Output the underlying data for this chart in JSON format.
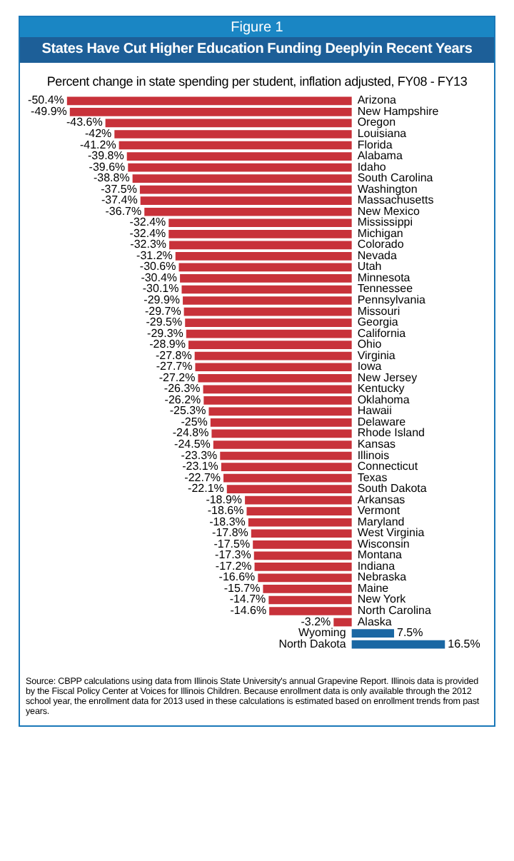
{
  "chart_data": {
    "type": "bar",
    "orientation": "horizontal",
    "title": "States Have Cut Higher Education Funding Deeplyin Recent Years",
    "subtitle": "Percent change in state spending per student, inflation adjusted, FY08 - FY13",
    "annotations": [
      "Figure 1",
      "Source: CBPP calculations using data from Illinois State University's annual Grapevine Report. Illinois data is provided by the Fiscal Policy Center at Voices for Illinois Children.  Because enrollment data is only available through the 2012 school year, the enrollment data for 2013 used in these calculations is estimated based on enrollment trends from past years."
    ],
    "categories": [
      "Arizona",
      "New Hampshire",
      "Oregon",
      "Louisiana",
      "Florida",
      "Alabama",
      "Idaho",
      "South Carolina",
      "Washington",
      "Massachusetts",
      "New Mexico",
      "Mississippi",
      "Michigan",
      "Colorado",
      "Nevada",
      "Utah",
      "Minnesota",
      "Tennessee",
      "Pennsylvania",
      "Missouri",
      "Georgia",
      "California",
      "Ohio",
      "Virginia",
      "Iowa",
      "New Jersey",
      "Kentucky",
      "Oklahoma",
      "Hawaii",
      "Delaware",
      "Rhode Island",
      "Kansas",
      "Illinois",
      "Connecticut",
      "Texas",
      "South Dakota",
      "Arkansas",
      "Vermont",
      "Maryland",
      "West Virginia",
      "Wisconsin",
      "Montana",
      "Indiana",
      "Nebraska",
      "Maine",
      "New York",
      "North Carolina",
      "Alaska",
      "Wyoming",
      "North Dakota"
    ],
    "values": [
      -50.4,
      -49.9,
      -43.6,
      -42,
      -41.2,
      -39.8,
      -39.6,
      -38.8,
      -37.5,
      -37.4,
      -36.7,
      -32.4,
      -32.4,
      -32.3,
      -31.2,
      -30.6,
      -30.4,
      -30.1,
      -29.9,
      -29.7,
      -29.5,
      -29.3,
      -28.9,
      -27.8,
      -27.7,
      -27.2,
      -26.3,
      -26.2,
      -25.3,
      -25,
      -24.8,
      -24.5,
      -23.3,
      -23.1,
      -22.7,
      -22.1,
      -18.9,
      -18.6,
      -18.3,
      -17.8,
      -17.5,
      -17.3,
      -17.2,
      -16.6,
      -15.7,
      -14.7,
      -14.6,
      -3.2,
      7.5,
      16.5
    ],
    "value_labels": [
      "-50.4%",
      "-49.9%",
      "-43.6%",
      "-42%",
      "-41.2%",
      "-39.8%",
      "-39.6%",
      "-38.8%",
      "-37.5%",
      "-37.4%",
      "-36.7%",
      "-32.4%",
      "-32.4%",
      "-32.3%",
      "-31.2%",
      "-30.6%",
      "-30.4%",
      "-30.1%",
      "-29.9%",
      "-29.7%",
      "-29.5%",
      "-29.3%",
      "-28.9%",
      "-27.8%",
      "-27.7%",
      "-27.2%",
      "-26.3%",
      "-26.2%",
      "-25.3%",
      "-25%",
      "-24.8%",
      "-24.5%",
      "-23.3%",
      "-23.1%",
      "-22.7%",
      "-22.1%",
      "-18.9%",
      "-18.6%",
      "-18.3%",
      "-17.8%",
      "-17.5%",
      "-17.3%",
      "-17.2%",
      "-16.6%",
      "-15.7%",
      "-14.7%",
      "-14.6%",
      "-3.2%",
      "7.5%",
      "16.5%"
    ],
    "colors": [
      "#c8323a",
      "#c8323a",
      "#c8323a",
      "#c8323a",
      "#c8323a",
      "#c8323a",
      "#c8323a",
      "#c8323a",
      "#c8323a",
      "#c8323a",
      "#c8323a",
      "#c8323a",
      "#c8323a",
      "#c8323a",
      "#c8323a",
      "#c8323a",
      "#c8323a",
      "#c8323a",
      "#c8323a",
      "#c8323a",
      "#c8323a",
      "#c8323a",
      "#c8323a",
      "#c8323a",
      "#c8323a",
      "#c8323a",
      "#c8323a",
      "#c8323a",
      "#c8323a",
      "#c8323a",
      "#c8323a",
      "#c8323a",
      "#c8323a",
      "#c8323a",
      "#c8323a",
      "#c8323a",
      "#c8323a",
      "#c8323a",
      "#c8323a",
      "#c8323a",
      "#c8323a",
      "#c8323a",
      "#c8323a",
      "#c8323a",
      "#c8323a",
      "#c8323a",
      "#c8323a",
      "#c8323a",
      "#1a67a3",
      "#1a67a3"
    ]
  }
}
